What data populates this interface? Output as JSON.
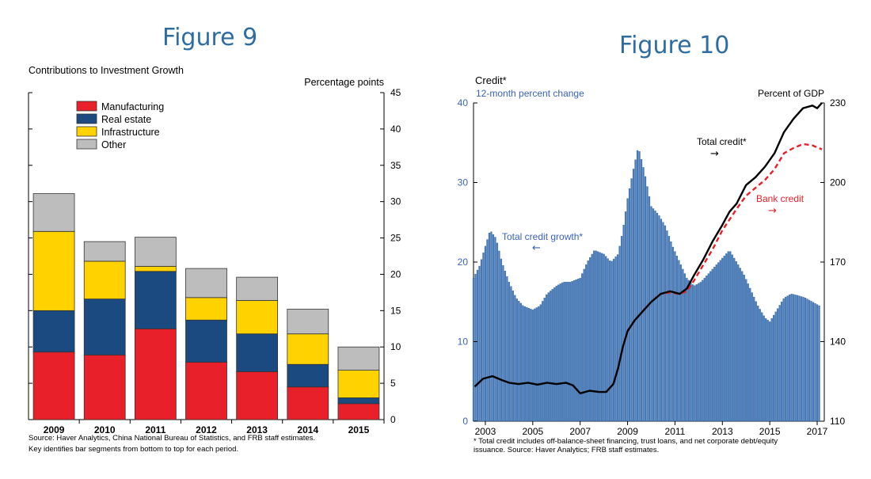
{
  "figures": [
    {
      "heading": "Figure 9"
    },
    {
      "heading": "Figure 10"
    }
  ],
  "chart_data": [
    {
      "type": "bar",
      "stacked": true,
      "title": "Contributions to Investment Growth",
      "unit_label": "Percentage points",
      "categories": [
        "2009",
        "2010",
        "2011",
        "2012",
        "2013",
        "2014",
        "2015"
      ],
      "ylim": [
        0,
        45
      ],
      "yticks": [
        0,
        5,
        10,
        15,
        20,
        25,
        30,
        35,
        40,
        45
      ],
      "legend_placement": "top-left",
      "series": [
        {
          "name": "Manufacturing",
          "color": "#e8202a",
          "values": [
            9.3,
            8.9,
            12.5,
            7.9,
            6.6,
            4.5,
            2.2
          ]
        },
        {
          "name": "Real estate",
          "color": "#1a4a80",
          "values": [
            5.7,
            7.7,
            7.9,
            5.8,
            5.2,
            3.1,
            0.8
          ]
        },
        {
          "name": "Infrastructure",
          "color": "#ffd200",
          "values": [
            10.9,
            5.2,
            0.7,
            3.1,
            4.6,
            4.2,
            3.8
          ]
        },
        {
          "name": "Other",
          "color": "#bdbdbd",
          "values": [
            5.2,
            2.7,
            4.0,
            4.0,
            3.2,
            3.4,
            3.2
          ]
        }
      ],
      "source": "Source: Haver Analytics, China National Bureau of Statistics, and FRB staff estimates.",
      "note": "Key identifies bar segments from bottom to top for each period."
    },
    {
      "type": "bar+line",
      "title": "Credit*",
      "left_axis_label": "12-month percent change",
      "right_axis_label": "Percent of GDP",
      "left_ylim": [
        0,
        40
      ],
      "left_yticks": [
        0,
        10,
        20,
        30,
        40
      ],
      "right_ylim": [
        110,
        230
      ],
      "right_yticks": [
        110,
        140,
        170,
        200,
        230
      ],
      "x_ticks": [
        "2003",
        "2005",
        "2007",
        "2009",
        "2011",
        "2013",
        "2015",
        "2017"
      ],
      "x_range": [
        2002.5,
        2017.3
      ],
      "bar_series": {
        "name": "Total credit growth*",
        "axis": "left",
        "color": "#4a7ebb",
        "points": [
          [
            2002.5,
            18
          ],
          [
            2002.75,
            19.5
          ],
          [
            2003.0,
            22
          ],
          [
            2003.2,
            24
          ],
          [
            2003.45,
            23
          ],
          [
            2003.7,
            20
          ],
          [
            2004.0,
            17.5
          ],
          [
            2004.3,
            15.5
          ],
          [
            2004.6,
            14.5
          ],
          [
            2005.0,
            14
          ],
          [
            2005.3,
            14.5
          ],
          [
            2005.6,
            16
          ],
          [
            2006.0,
            17
          ],
          [
            2006.3,
            17.5
          ],
          [
            2006.6,
            17.5
          ],
          [
            2007.0,
            18
          ],
          [
            2007.3,
            20
          ],
          [
            2007.6,
            21.5
          ],
          [
            2008.0,
            21
          ],
          [
            2008.3,
            20
          ],
          [
            2008.6,
            21
          ],
          [
            2008.8,
            24
          ],
          [
            2009.0,
            28
          ],
          [
            2009.2,
            31
          ],
          [
            2009.45,
            34.5
          ],
          [
            2009.7,
            31.5
          ],
          [
            2010.0,
            27
          ],
          [
            2010.3,
            26
          ],
          [
            2010.6,
            24.5
          ],
          [
            2010.9,
            22
          ],
          [
            2011.2,
            20
          ],
          [
            2011.5,
            18
          ],
          [
            2011.8,
            17
          ],
          [
            2012.1,
            17.5
          ],
          [
            2012.4,
            18.5
          ],
          [
            2012.7,
            19.5
          ],
          [
            2013.0,
            20.5
          ],
          [
            2013.3,
            21.5
          ],
          [
            2013.6,
            20
          ],
          [
            2013.9,
            18.5
          ],
          [
            2014.2,
            16.5
          ],
          [
            2014.5,
            14.5
          ],
          [
            2014.8,
            13
          ],
          [
            2015.0,
            12.5
          ],
          [
            2015.3,
            14
          ],
          [
            2015.6,
            15.5
          ],
          [
            2015.9,
            16
          ],
          [
            2016.2,
            15.8
          ],
          [
            2016.5,
            15.5
          ],
          [
            2016.8,
            15
          ],
          [
            2017.1,
            14.5
          ]
        ]
      },
      "line_series": [
        {
          "name": "Total credit*",
          "axis": "right",
          "color": "#000000",
          "style": "solid",
          "points": [
            [
              2002.55,
              123
            ],
            [
              2002.9,
              126
            ],
            [
              2003.3,
              127
            ],
            [
              2003.7,
              125.5
            ],
            [
              2004.0,
              124.5
            ],
            [
              2004.4,
              124
            ],
            [
              2004.8,
              124.5
            ],
            [
              2005.2,
              123.8
            ],
            [
              2005.6,
              124.5
            ],
            [
              2006.0,
              124
            ],
            [
              2006.4,
              124.5
            ],
            [
              2006.7,
              123.5
            ],
            [
              2007.0,
              120.5
            ],
            [
              2007.4,
              121.5
            ],
            [
              2007.8,
              121
            ],
            [
              2008.1,
              121
            ],
            [
              2008.4,
              124
            ],
            [
              2008.6,
              130
            ],
            [
              2008.8,
              138
            ],
            [
              2009.0,
              144
            ],
            [
              2009.3,
              148
            ],
            [
              2009.6,
              151
            ],
            [
              2010.0,
              155
            ],
            [
              2010.4,
              158
            ],
            [
              2010.8,
              159
            ],
            [
              2011.2,
              158
            ],
            [
              2011.5,
              160
            ],
            [
              2011.8,
              165
            ],
            [
              2012.2,
              171
            ],
            [
              2012.6,
              178
            ],
            [
              2013.0,
              184
            ],
            [
              2013.3,
              189
            ],
            [
              2013.6,
              192
            ],
            [
              2014.0,
              199
            ],
            [
              2014.4,
              202
            ],
            [
              2014.8,
              206
            ],
            [
              2015.2,
              211
            ],
            [
              2015.6,
              219
            ],
            [
              2016.0,
              224
            ],
            [
              2016.4,
              228
            ],
            [
              2016.8,
              229
            ],
            [
              2017.0,
              228
            ],
            [
              2017.2,
              230
            ]
          ]
        },
        {
          "name": "Bank credit",
          "axis": "right",
          "color": "#e8202a",
          "style": "dashed",
          "points": [
            [
              2009.0,
              144
            ],
            [
              2009.3,
              148
            ],
            [
              2009.6,
              151
            ],
            [
              2010.0,
              155
            ],
            [
              2010.4,
              158
            ],
            [
              2010.8,
              158.5
            ],
            [
              2011.2,
              158
            ],
            [
              2011.5,
              159
            ],
            [
              2011.8,
              163
            ],
            [
              2012.2,
              169
            ],
            [
              2012.6,
              175
            ],
            [
              2013.0,
              182
            ],
            [
              2013.3,
              186
            ],
            [
              2013.6,
              190
            ],
            [
              2014.0,
              195
            ],
            [
              2014.4,
              198
            ],
            [
              2014.8,
              201
            ],
            [
              2015.2,
              205
            ],
            [
              2015.6,
              211
            ],
            [
              2016.0,
              213
            ],
            [
              2016.4,
              214.5
            ],
            [
              2016.8,
              214
            ],
            [
              2017.2,
              212.5
            ]
          ]
        }
      ],
      "annotations": {
        "total_credit_growth_arrow": "←",
        "total_credit_arrow": "→",
        "bank_credit_arrow": "→"
      },
      "footnote_line1": "* Total credit includes off-balance-sheet financing, trust loans, and net corporate debt/equity",
      "footnote_line2": "issuance. Source: Haver Analytics; FRB staff estimates."
    }
  ]
}
